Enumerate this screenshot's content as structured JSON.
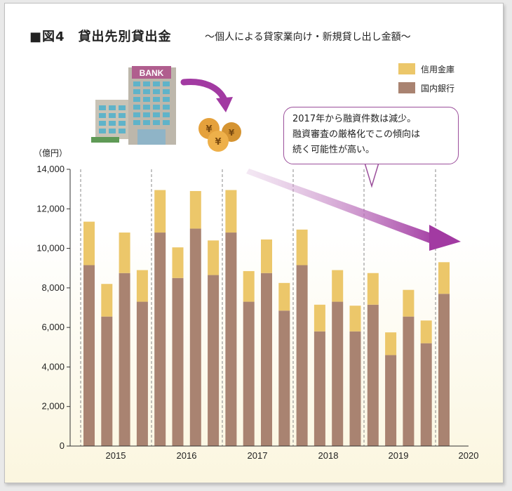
{
  "title": "■図4　貸出先別貸出金",
  "subtitle": "～個人による貸家業向け・新規貸し出し金額～",
  "unit": "（億円）",
  "legend": [
    {
      "label": "信用金庫",
      "color": "#ecc76a"
    },
    {
      "label": "国内銀行",
      "color": "#a98371"
    }
  ],
  "callout": [
    "2017年から融資件数は減少。",
    "融資審査の厳格化でこの傾向は",
    "続く可能性が高い。"
  ],
  "bank_sign": "BANK",
  "coin_symbol": "¥",
  "chart_data": {
    "type": "bar",
    "stacked": true,
    "ylim": [
      0,
      14000
    ],
    "yticks": [
      "0",
      "2,000",
      "4,000",
      "6,000",
      "8,000",
      "10,000",
      "12,000",
      "14,000"
    ],
    "year_labels": [
      "2015",
      "2016",
      "2017",
      "2018",
      "2019",
      "2020"
    ],
    "series": [
      {
        "name": "国内銀行",
        "color": "#a98371",
        "values": [
          9150,
          6550,
          8750,
          7300,
          10800,
          8500,
          11000,
          8650,
          10800,
          7300,
          8750,
          6850,
          9150,
          5800,
          7300,
          5800,
          7150,
          4600,
          6550,
          5200,
          7700
        ]
      },
      {
        "name": "信用金庫",
        "color": "#ecc76a",
        "values": [
          2200,
          1650,
          2050,
          1600,
          2150,
          1550,
          1900,
          1750,
          2150,
          1550,
          1700,
          1400,
          1800,
          1350,
          1600,
          1300,
          1600,
          1150,
          1350,
          1150,
          1600
        ]
      }
    ]
  }
}
